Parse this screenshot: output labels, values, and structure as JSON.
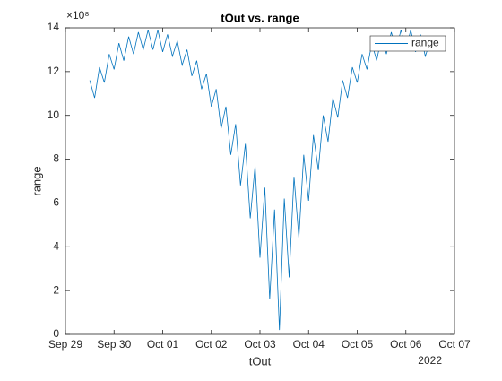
{
  "chart_data": {
    "type": "line",
    "title": "tOut vs. range",
    "x_label": "tOut",
    "y_label": "range",
    "y_exponent": "×10⁸",
    "x_year_label": "2022",
    "legend": "top-right",
    "grid": false,
    "xlim": [
      0,
      8
    ],
    "xticks": [
      {
        "value": 0,
        "label": "Sep 29"
      },
      {
        "value": 1,
        "label": "Sep 30"
      },
      {
        "value": 2,
        "label": "Oct 01"
      },
      {
        "value": 3,
        "label": "Oct 02"
      },
      {
        "value": 4,
        "label": "Oct 03"
      },
      {
        "value": 5,
        "label": "Oct 04"
      },
      {
        "value": 6,
        "label": "Oct 05"
      },
      {
        "value": 7,
        "label": "Oct 06"
      },
      {
        "value": 8,
        "label": "Oct 07"
      }
    ],
    "ylim": [
      0,
      14
    ],
    "yticks": [
      0,
      2,
      4,
      6,
      8,
      10,
      12,
      14
    ],
    "x": [
      0.5,
      0.6,
      0.7,
      0.8,
      0.9,
      1.0,
      1.1,
      1.2,
      1.3,
      1.4,
      1.5,
      1.6,
      1.7,
      1.8,
      1.9,
      2.0,
      2.1,
      2.2,
      2.3,
      2.4,
      2.5,
      2.6,
      2.7,
      2.8,
      2.9,
      3.0,
      3.1,
      3.2,
      3.3,
      3.4,
      3.5,
      3.6,
      3.7,
      3.8,
      3.9,
      4.0,
      4.1,
      4.2,
      4.3,
      4.4,
      4.5,
      4.6,
      4.7,
      4.8,
      4.9,
      5.0,
      5.1,
      5.2,
      5.3,
      5.4,
      5.5,
      5.6,
      5.7,
      5.8,
      5.9,
      6.0,
      6.1,
      6.2,
      6.3,
      6.4,
      6.5,
      6.6,
      6.7,
      6.8,
      6.9,
      7.0,
      7.1,
      7.2,
      7.3,
      7.4,
      7.5
    ],
    "series": [
      {
        "name": "range",
        "color": "#0072bd",
        "values": [
          11.6,
          10.8,
          12.2,
          11.5,
          12.8,
          12.1,
          13.3,
          12.5,
          13.6,
          12.8,
          13.8,
          13.0,
          13.9,
          13.0,
          13.9,
          12.9,
          13.7,
          12.7,
          13.4,
          12.3,
          13.0,
          11.8,
          12.5,
          11.2,
          11.9,
          10.4,
          11.2,
          9.4,
          10.4,
          8.2,
          9.6,
          6.8,
          8.7,
          5.3,
          7.7,
          3.5,
          6.7,
          1.6,
          5.7,
          0.2,
          6.2,
          2.6,
          7.2,
          4.4,
          8.2,
          6.1,
          9.1,
          7.5,
          10.0,
          8.8,
          10.8,
          9.9,
          11.6,
          10.8,
          12.2,
          11.5,
          12.8,
          12.1,
          13.3,
          12.5,
          13.6,
          12.8,
          13.8,
          13.0,
          13.9,
          13.0,
          13.9,
          12.9,
          13.7,
          12.7,
          13.4
        ]
      }
    ]
  }
}
